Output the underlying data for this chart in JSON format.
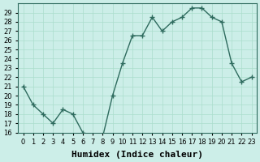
{
  "x": [
    0,
    1,
    2,
    3,
    4,
    5,
    6,
    7,
    8,
    9,
    10,
    11,
    12,
    13,
    14,
    15,
    16,
    17,
    18,
    19,
    20,
    21,
    22,
    23
  ],
  "y": [
    21,
    19,
    18,
    17,
    18.5,
    18,
    16,
    15.5,
    15.5,
    20,
    23.5,
    26.5,
    26.5,
    28.5,
    27,
    28,
    28.5,
    29.5,
    29.5,
    28.5,
    28,
    23.5,
    21.5,
    22
  ],
  "line_color": "#2e6b5e",
  "marker": "+",
  "marker_size": 4,
  "bg_color": "#cceee8",
  "grid_color": "#aaddcc",
  "xlabel": "Humidex (Indice chaleur)",
  "ylim": [
    16,
    30
  ],
  "xlim": [
    -0.5,
    23.5
  ],
  "yticks": [
    16,
    17,
    18,
    19,
    20,
    21,
    22,
    23,
    24,
    25,
    26,
    27,
    28,
    29
  ],
  "xticks": [
    0,
    1,
    2,
    3,
    4,
    5,
    6,
    7,
    8,
    9,
    10,
    11,
    12,
    13,
    14,
    15,
    16,
    17,
    18,
    19,
    20,
    21,
    22,
    23
  ],
  "xtick_labels": [
    "0",
    "1",
    "2",
    "3",
    "4",
    "5",
    "6",
    "7",
    "8",
    "9",
    "10",
    "11",
    "12",
    "13",
    "14",
    "15",
    "16",
    "17",
    "18",
    "19",
    "20",
    "21",
    "22",
    "23"
  ],
  "tick_fontsize": 6,
  "xlabel_fontsize": 8
}
